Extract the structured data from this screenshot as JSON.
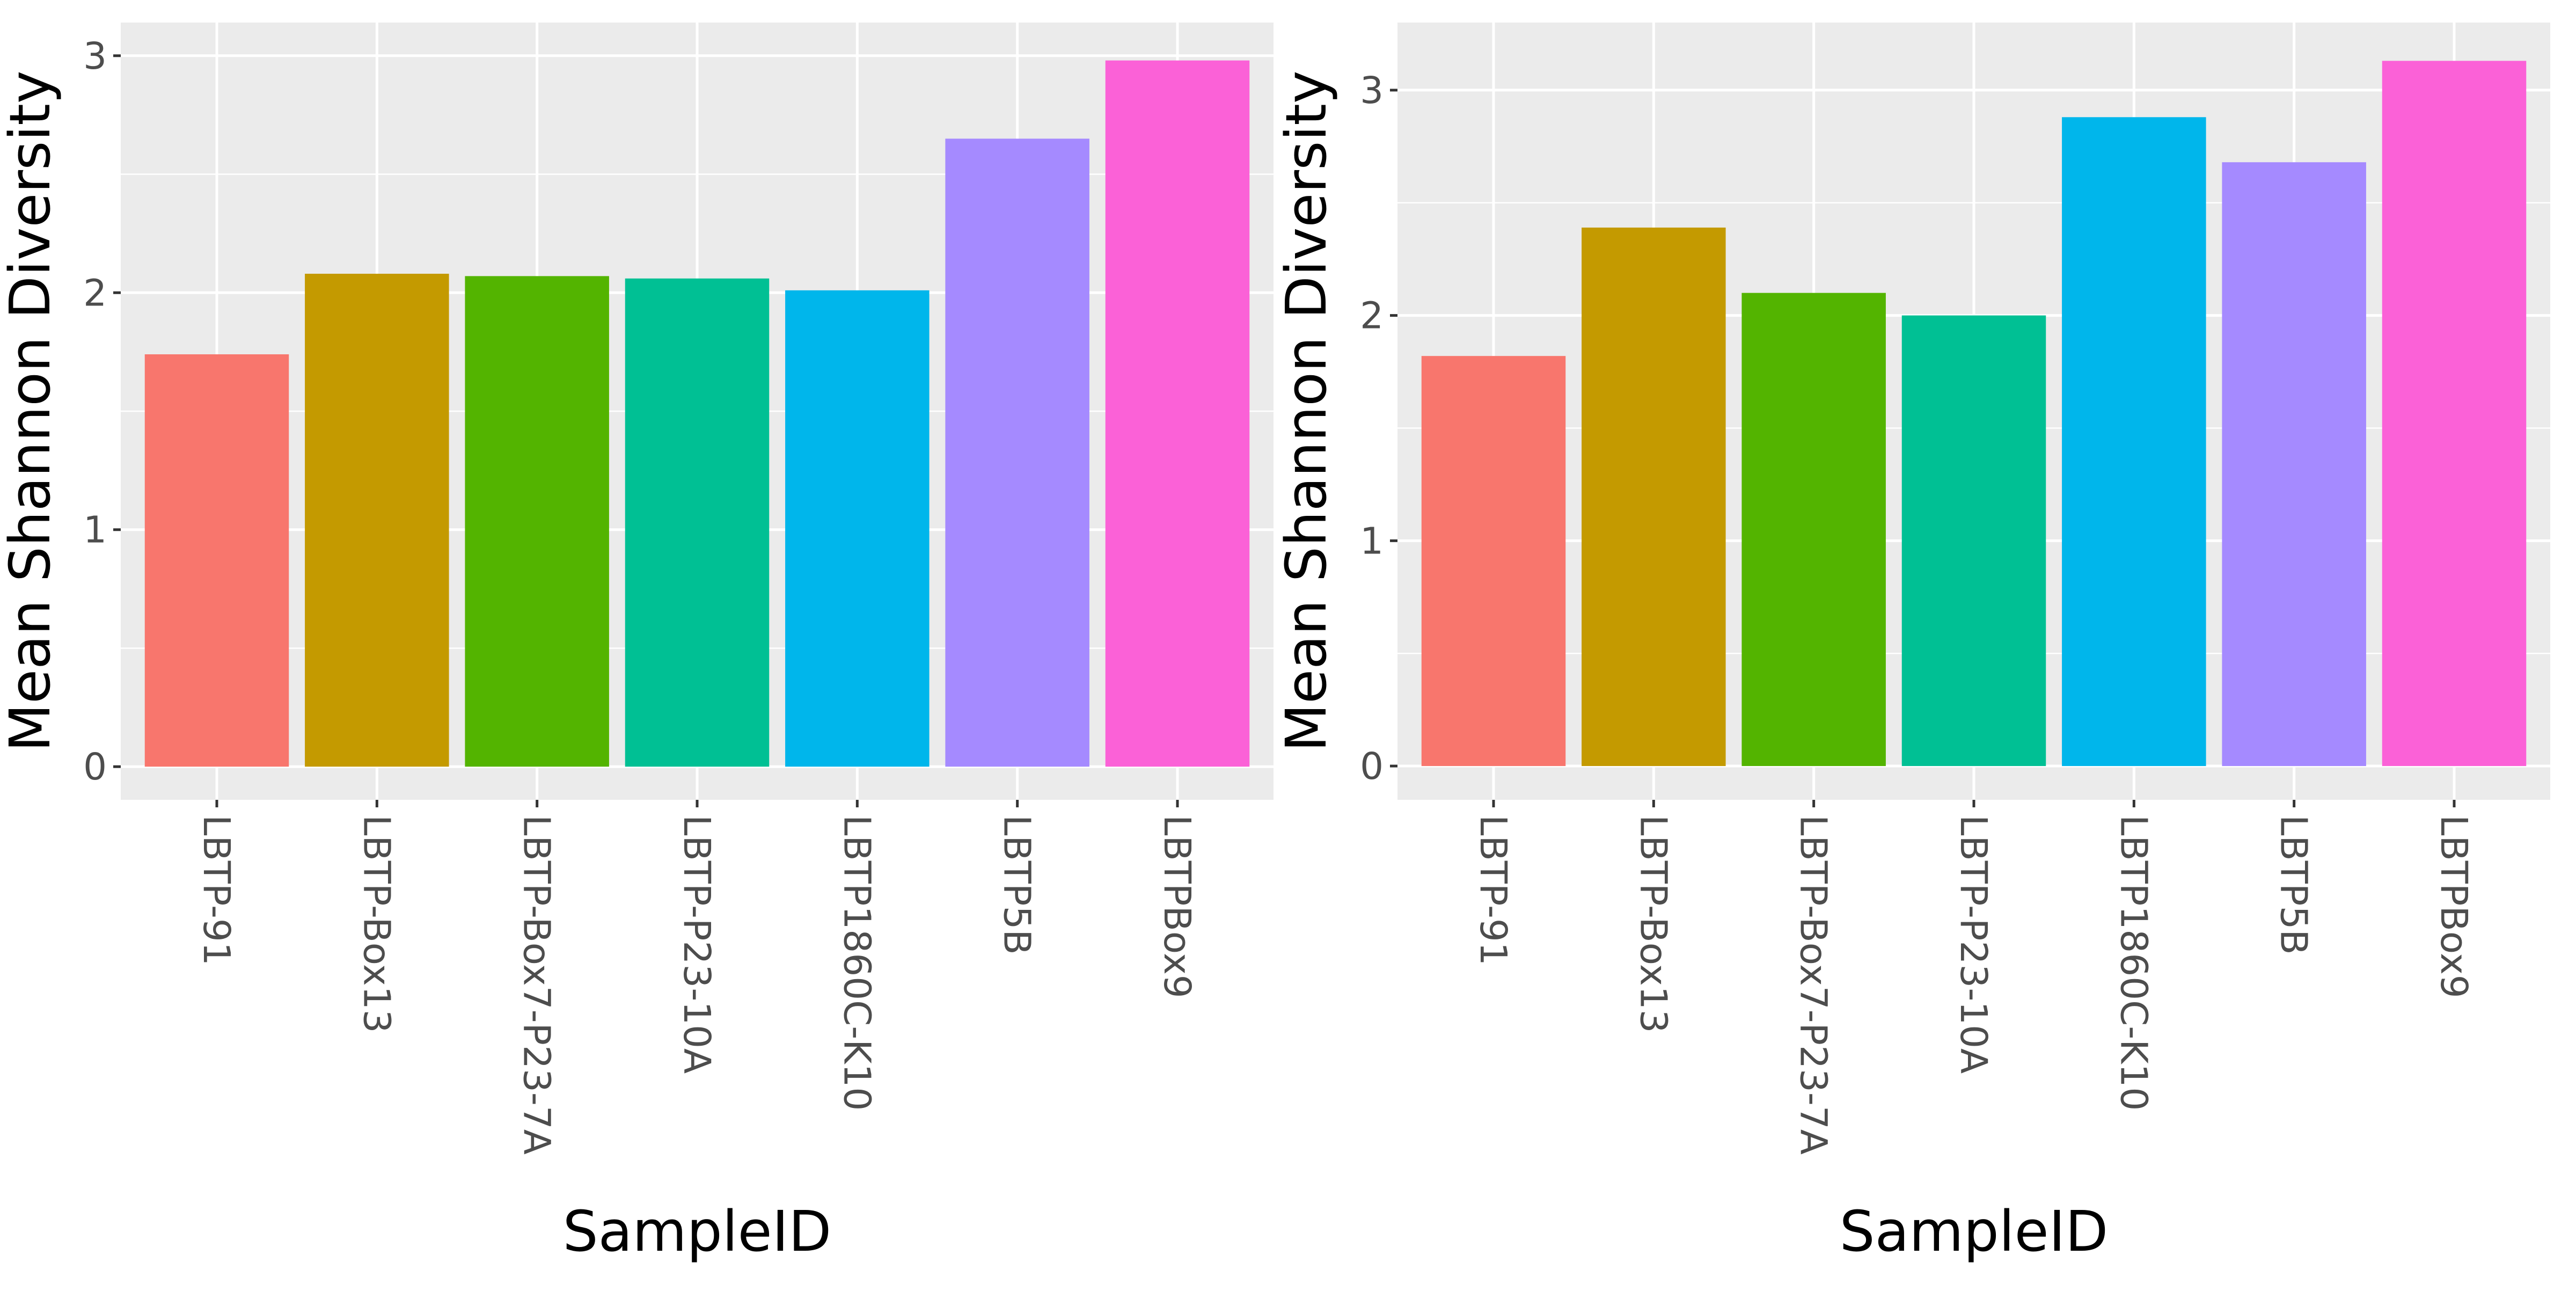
{
  "chart_data": [
    {
      "type": "bar",
      "xlabel": "SampleID",
      "ylabel": "Mean Shannon Diversity",
      "ylim": [
        -0.14,
        3.14
      ],
      "yticks": [
        0,
        1,
        2,
        3
      ],
      "grid": true,
      "categories": [
        "LBTP-91",
        "LBTP-Box13",
        "LBTP-Box7-P23-7A",
        "LBTP-P23-10A",
        "LBTP1860C-K10",
        "LBTP5B",
        "LBTPBox9"
      ],
      "values": [
        1.74,
        2.08,
        2.07,
        2.06,
        2.01,
        2.65,
        2.98
      ],
      "colors": [
        "#F8766D",
        "#C49A00",
        "#53B400",
        "#00C094",
        "#00B6EB",
        "#A58AFF",
        "#FB61D7"
      ]
    },
    {
      "type": "bar",
      "xlabel": "SampleID",
      "ylabel": "Mean Shannon Diversity",
      "ylim": [
        -0.15,
        3.3
      ],
      "yticks": [
        0,
        1,
        2,
        3
      ],
      "grid": true,
      "categories": [
        "LBTP-91",
        "LBTP-Box13",
        "LBTP-Box7-P23-7A",
        "LBTP-P23-10A",
        "LBTP1860C-K10",
        "LBTP5B",
        "LBTPBox9"
      ],
      "values": [
        1.82,
        2.39,
        2.1,
        2.0,
        2.88,
        2.68,
        3.13
      ],
      "colors": [
        "#F8766D",
        "#C49A00",
        "#53B400",
        "#00C094",
        "#00B6EB",
        "#A58AFF",
        "#FB61D7"
      ]
    }
  ]
}
